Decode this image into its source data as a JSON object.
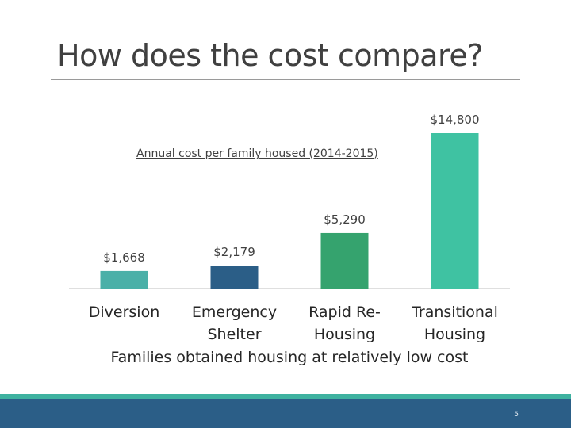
{
  "slide": {
    "title": "How does the cost compare?",
    "page_number": "5"
  },
  "chart_data": {
    "type": "bar",
    "title": "Annual cost per family housed (2014-2015)",
    "xlabel": "Families obtained housing at relatively low cost",
    "ylabel": "",
    "categories": [
      "Diversion",
      "Emergency Shelter",
      "Rapid Re-Housing",
      "Transitional Housing"
    ],
    "category_lines": [
      [
        "Diversion"
      ],
      [
        "Emergency",
        "Shelter"
      ],
      [
        "Rapid Re-",
        "Housing"
      ],
      [
        "Transitional",
        "Housing"
      ]
    ],
    "values": [
      1668,
      2179,
      5290,
      14800
    ],
    "data_labels": [
      "$1,668",
      "$2,179",
      "$5,290",
      "$14,800"
    ],
    "colors": [
      "#4ab0a8",
      "#2b5e87",
      "#35a36e",
      "#3fc2a2"
    ],
    "ylim": [
      0,
      14800
    ],
    "grid": false,
    "legend": "none"
  }
}
